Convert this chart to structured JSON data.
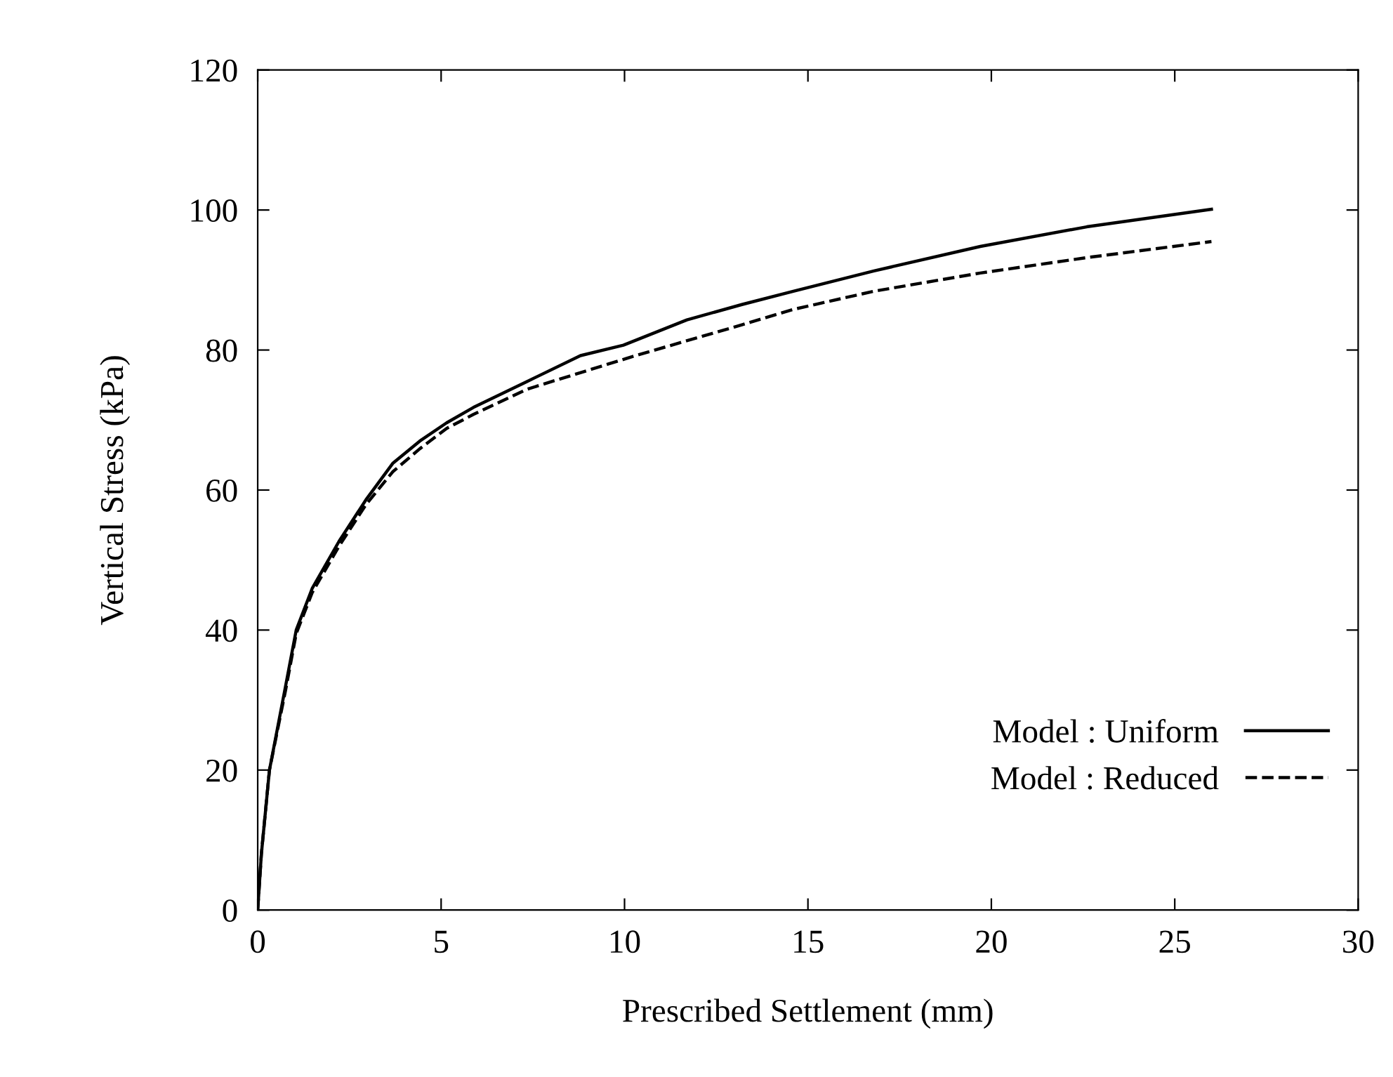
{
  "chart_data": {
    "type": "line",
    "xlabel": "Prescribed Settlement (mm)",
    "ylabel": "Vertical Stress (kPa)",
    "xlim": [
      0,
      30
    ],
    "xticks": [
      0,
      5,
      10,
      15,
      20,
      25,
      30
    ],
    "ylim": [
      0,
      120
    ],
    "yticks": [
      0,
      20,
      40,
      60,
      80,
      100,
      120
    ],
    "legend": "bottom right",
    "grid": false,
    "series": [
      {
        "name": "Model : Uniform",
        "color": "#000000",
        "line_style": "solid",
        "x": [
          0,
          0.1,
          0.32,
          0.76,
          1.05,
          1.49,
          2.22,
          2.95,
          3.68,
          4.42,
          5.15,
          5.88,
          7.34,
          8.8,
          9.97,
          11.7,
          13.2,
          14.6,
          16.8,
          19.7,
          22.6,
          26.0
        ],
        "values": [
          0,
          8,
          20,
          32,
          40,
          46,
          52.7,
          58.6,
          63.8,
          67,
          69.6,
          71.8,
          75.5,
          79.2,
          80.7,
          84.3,
          86.5,
          88.4,
          91.3,
          94.8,
          97.6,
          100.1
        ]
      },
      {
        "name": "Model : Reduced",
        "color": "#000000",
        "line_style": "dashed",
        "x": [
          0,
          0.1,
          0.32,
          0.76,
          1.05,
          1.49,
          2.22,
          2.95,
          3.68,
          4.42,
          5.15,
          5.88,
          7.34,
          10.3,
          13.2,
          14.6,
          16.8,
          19.7,
          22.6,
          26.0
        ],
        "values": [
          0,
          8,
          20,
          31.4,
          39.5,
          45.4,
          52,
          57.9,
          62.6,
          65.9,
          68.8,
          70.8,
          74.4,
          79.2,
          83.6,
          85.8,
          88.4,
          91,
          93.2,
          95.5
        ]
      }
    ]
  }
}
